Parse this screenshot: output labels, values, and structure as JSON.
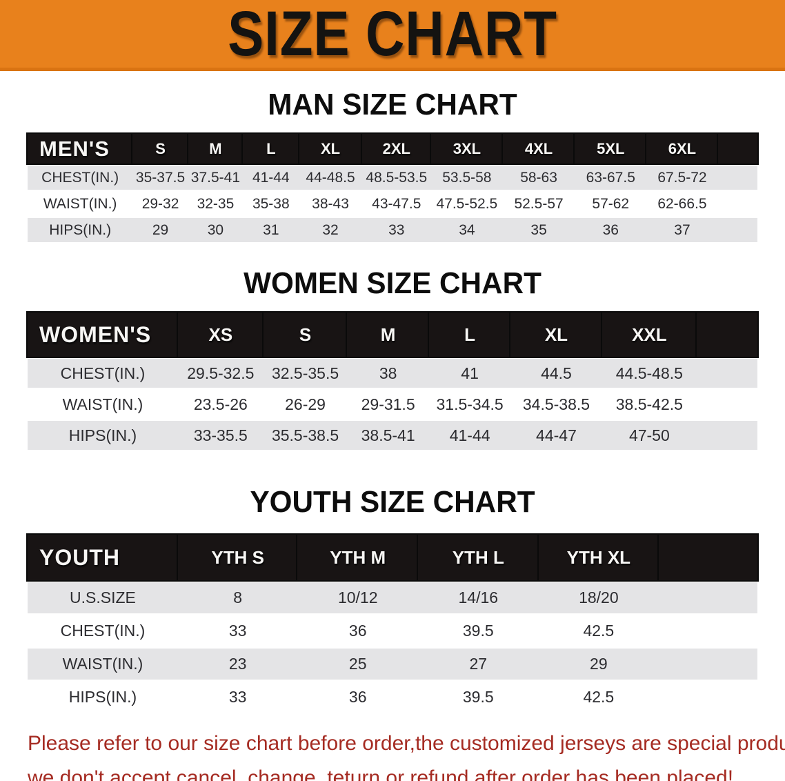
{
  "banner": {
    "title": "SIZE CHART"
  },
  "sections": [
    {
      "heading": "MAN SIZE CHART",
      "table": {
        "label": "MEN'S",
        "columns": [
          "S",
          "M",
          "L",
          "XL",
          "2XL",
          "3XL",
          "4XL",
          "5XL",
          "6XL"
        ],
        "rows": [
          {
            "label": "CHEST(IN.)",
            "values": [
              "35-37.5",
              "37.5-41",
              "41-44",
              "44-48.5",
              "48.5-53.5",
              "53.5-58",
              "58-63",
              "63-67.5",
              "67.5-72"
            ]
          },
          {
            "label": "WAIST(IN.)",
            "values": [
              "29-32",
              "32-35",
              "35-38",
              "38-43",
              "43-47.5",
              "47.5-52.5",
              "52.5-57",
              "57-62",
              "62-66.5"
            ]
          },
          {
            "label": "HIPS(IN.)",
            "values": [
              "29",
              "30",
              "31",
              "32",
              "33",
              "34",
              "35",
              "36",
              "37"
            ]
          }
        ]
      }
    },
    {
      "heading": "WOMEN SIZE CHART",
      "table": {
        "label": "WOMEN'S",
        "columns": [
          "XS",
          "S",
          "M",
          "L",
          "XL",
          "XXL"
        ],
        "rows": [
          {
            "label": "CHEST(IN.)",
            "values": [
              "29.5-32.5",
              "32.5-35.5",
              "38",
              "41",
              "44.5",
              "44.5-48.5"
            ]
          },
          {
            "label": "WAIST(IN.)",
            "values": [
              "23.5-26",
              "26-29",
              "29-31.5",
              "31.5-34.5",
              "34.5-38.5",
              "38.5-42.5"
            ]
          },
          {
            "label": "HIPS(IN.)",
            "values": [
              "33-35.5",
              "35.5-38.5",
              "38.5-41",
              "41-44",
              "44-47",
              "47-50"
            ]
          }
        ]
      }
    },
    {
      "heading": "YOUTH SIZE CHART",
      "table": {
        "label": "YOUTH",
        "columns": [
          "YTH S",
          "YTH M",
          "YTH L",
          "YTH XL"
        ],
        "rows": [
          {
            "label": "U.S.SIZE",
            "values": [
              "8",
              "10/12",
              "14/16",
              "18/20"
            ]
          },
          {
            "label": "CHEST(IN.)",
            "values": [
              "33",
              "36",
              "39.5",
              "42.5"
            ]
          },
          {
            "label": "WAIST(IN.)",
            "values": [
              "23",
              "25",
              "27",
              "29"
            ]
          },
          {
            "label": "HIPS(IN.)",
            "values": [
              "33",
              "36",
              "39.5",
              "42.5"
            ]
          }
        ]
      }
    }
  ],
  "footer": {
    "lines": [
      "Please refer to our size chart before order,the customized jerseys are special products,",
      "we don't accept cancel, change, teturn or refund after order has been placed!"
    ]
  },
  "colors": {
    "banner_orange": "#e8811c",
    "banner_edge_orange": "#d97312",
    "header_bar_black": "#181414",
    "row_stripe_gray": "#e4e4e6",
    "footer_red": "#a52b22",
    "heading_black": "#0d0d0d"
  }
}
